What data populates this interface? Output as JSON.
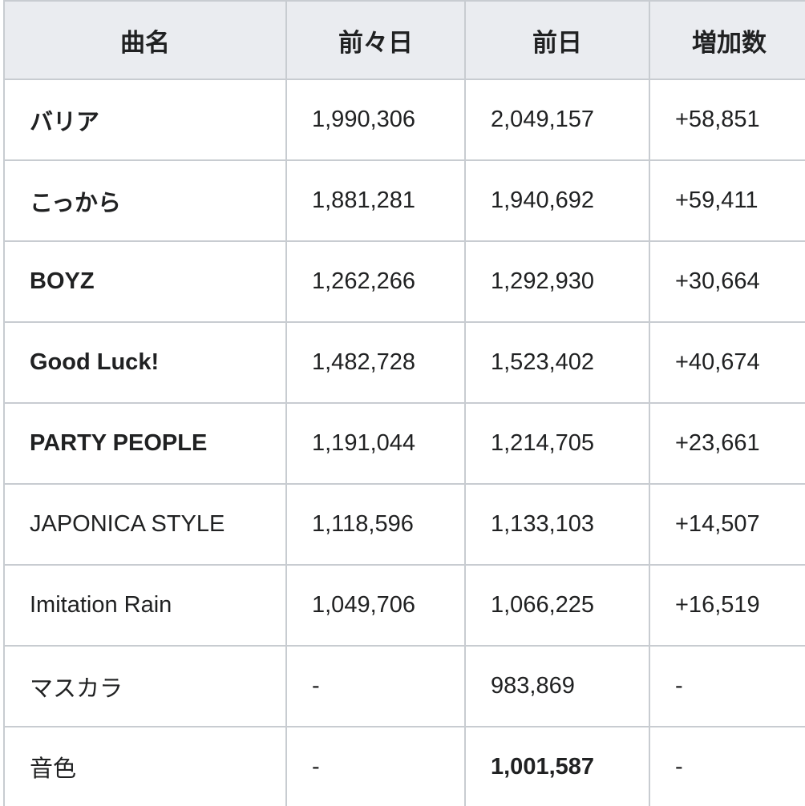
{
  "table": {
    "headers": [
      "曲名",
      "前々日",
      "前日",
      "増加数"
    ],
    "rows": [
      {
        "title": "バリア",
        "title_bold": true,
        "prev2": "1,990,306",
        "prev": "2,049,157",
        "prev_bold": false,
        "increase": "+58,851"
      },
      {
        "title": "こっから",
        "title_bold": true,
        "prev2": "1,881,281",
        "prev": "1,940,692",
        "prev_bold": false,
        "increase": "+59,411"
      },
      {
        "title": "BOYZ",
        "title_bold": true,
        "prev2": "1,262,266",
        "prev": "1,292,930",
        "prev_bold": false,
        "increase": "+30,664"
      },
      {
        "title": "Good Luck!",
        "title_bold": true,
        "prev2": "1,482,728",
        "prev": "1,523,402",
        "prev_bold": false,
        "increase": "+40,674"
      },
      {
        "title": "PARTY PEOPLE",
        "title_bold": true,
        "prev2": "1,191,044",
        "prev": "1,214,705",
        "prev_bold": false,
        "increase": "+23,661"
      },
      {
        "title": "JAPONICA STYLE",
        "title_bold": false,
        "prev2": "1,118,596",
        "prev": "1,133,103",
        "prev_bold": false,
        "increase": "+14,507"
      },
      {
        "title": "Imitation Rain",
        "title_bold": false,
        "prev2": "1,049,706",
        "prev": "1,066,225",
        "prev_bold": false,
        "increase": "+16,519"
      },
      {
        "title": "マスカラ",
        "title_bold": false,
        "prev2": "-",
        "prev": "983,869",
        "prev_bold": false,
        "increase": "-"
      },
      {
        "title": "音色",
        "title_bold": false,
        "prev2": "-",
        "prev": "1,001,587",
        "prev_bold": true,
        "increase": "-"
      }
    ]
  }
}
